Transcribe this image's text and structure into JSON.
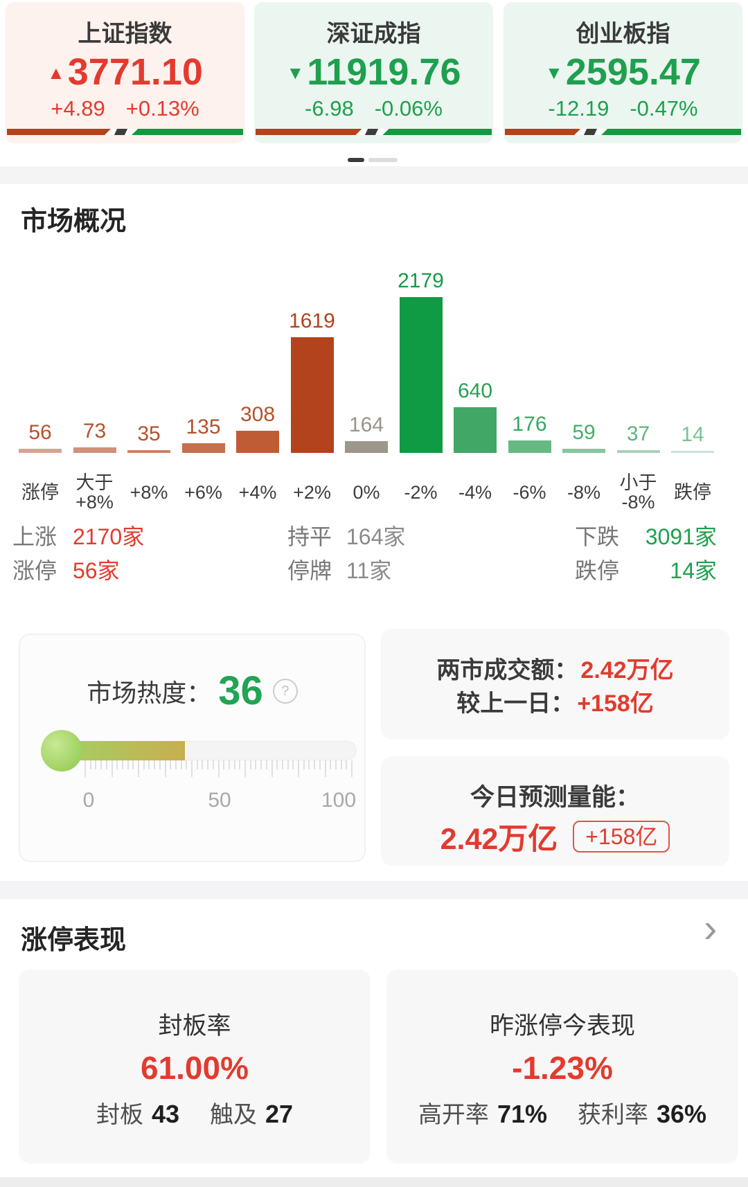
{
  "indices": [
    {
      "name": "上证指数",
      "direction": "up",
      "arrow": "▲",
      "value": "3771.10",
      "change": "+4.89",
      "change_pct": "+0.13%",
      "bar_red_pct": 44
    },
    {
      "name": "深证成指",
      "direction": "down",
      "arrow": "▼",
      "value": "11919.76",
      "change": "-6.98",
      "change_pct": "-0.06%",
      "bar_red_pct": 45
    },
    {
      "name": "创业板指",
      "direction": "down",
      "arrow": "▼",
      "value": "2595.47",
      "change": "-12.19",
      "change_pct": "-0.47%",
      "bar_red_pct": 32
    }
  ],
  "pager": {
    "count": 2,
    "active_index": 0
  },
  "colors": {
    "up_red": "#e23b2e",
    "down_green": "#1ea04e",
    "progress_red": "#b4421b",
    "progress_green": "#13993f",
    "heat_green": "#22a453"
  },
  "market_overview": {
    "title": "市场概况",
    "chart_data": {
      "type": "bar",
      "categories": [
        "涨停",
        "大于\n+8%",
        "+8%",
        "+6%",
        "+4%",
        "+2%",
        "0%",
        "-2%",
        "-4%",
        "-6%",
        "-8%",
        "小于\n-8%",
        "跌停"
      ],
      "values": [
        56,
        73,
        35,
        135,
        308,
        1619,
        164,
        2179,
        640,
        176,
        59,
        37,
        14
      ],
      "bar_colors": [
        "#d8a492",
        "#d09178",
        "#cc8164",
        "#c66f4e",
        "#bf5c36",
        "#b2431d",
        "#9c968b",
        "#0f9b44",
        "#40a766",
        "#68b884",
        "#87c59d",
        "#a5d3b5",
        "#c8e5d3"
      ],
      "label_colors": [
        "#b5512b",
        "#b5512b",
        "#b5512b",
        "#b5512b",
        "#b5512b",
        "#b2431d",
        "#99938a",
        "#149a47",
        "#27a053",
        "#35a75f",
        "#47ad6b",
        "#5cb67a",
        "#79c292"
      ],
      "title": "市场概况",
      "xlabel": "",
      "ylabel": "",
      "ylim": [
        0,
        2179
      ],
      "grid": false,
      "value_labels_shown": true
    },
    "summary_rows": [
      [
        {
          "label": "上涨",
          "value": "2170家",
          "tone": "red"
        },
        {
          "label": "持平",
          "value": "164家",
          "tone": "gray"
        },
        {
          "label": "下跌",
          "value": "3091家",
          "tone": "green"
        }
      ],
      [
        {
          "label": "涨停",
          "value": "56家",
          "tone": "red"
        },
        {
          "label": "停牌",
          "value": "11家",
          "tone": "gray"
        },
        {
          "label": "跌停",
          "value": "14家",
          "tone": "green"
        }
      ]
    ]
  },
  "heat": {
    "label": "市场热度：",
    "value": "36",
    "percent": 36,
    "help_icon": "?",
    "scale_ticks": [
      "0",
      "50",
      "100"
    ]
  },
  "turnover": {
    "rows": [
      {
        "label": "两市成交额：",
        "value": "2.42万亿"
      },
      {
        "label": "较上一日：",
        "value": "+158亿"
      }
    ]
  },
  "forecast": {
    "label": "今日预测量能：",
    "value": "2.42万亿",
    "badge": "+158亿"
  },
  "limit_up": {
    "title": "涨停表现",
    "chevron": "›",
    "cards": [
      {
        "title": "封板率",
        "value": "61.00%",
        "stats": [
          {
            "label": "封板",
            "value": "43"
          },
          {
            "label": "触及",
            "value": "27"
          }
        ]
      },
      {
        "title": "昨涨停今表现",
        "value": "-1.23%",
        "stats": [
          {
            "label": "高开率",
            "value": "71%"
          },
          {
            "label": "获利率",
            "value": "36%"
          }
        ]
      }
    ]
  }
}
